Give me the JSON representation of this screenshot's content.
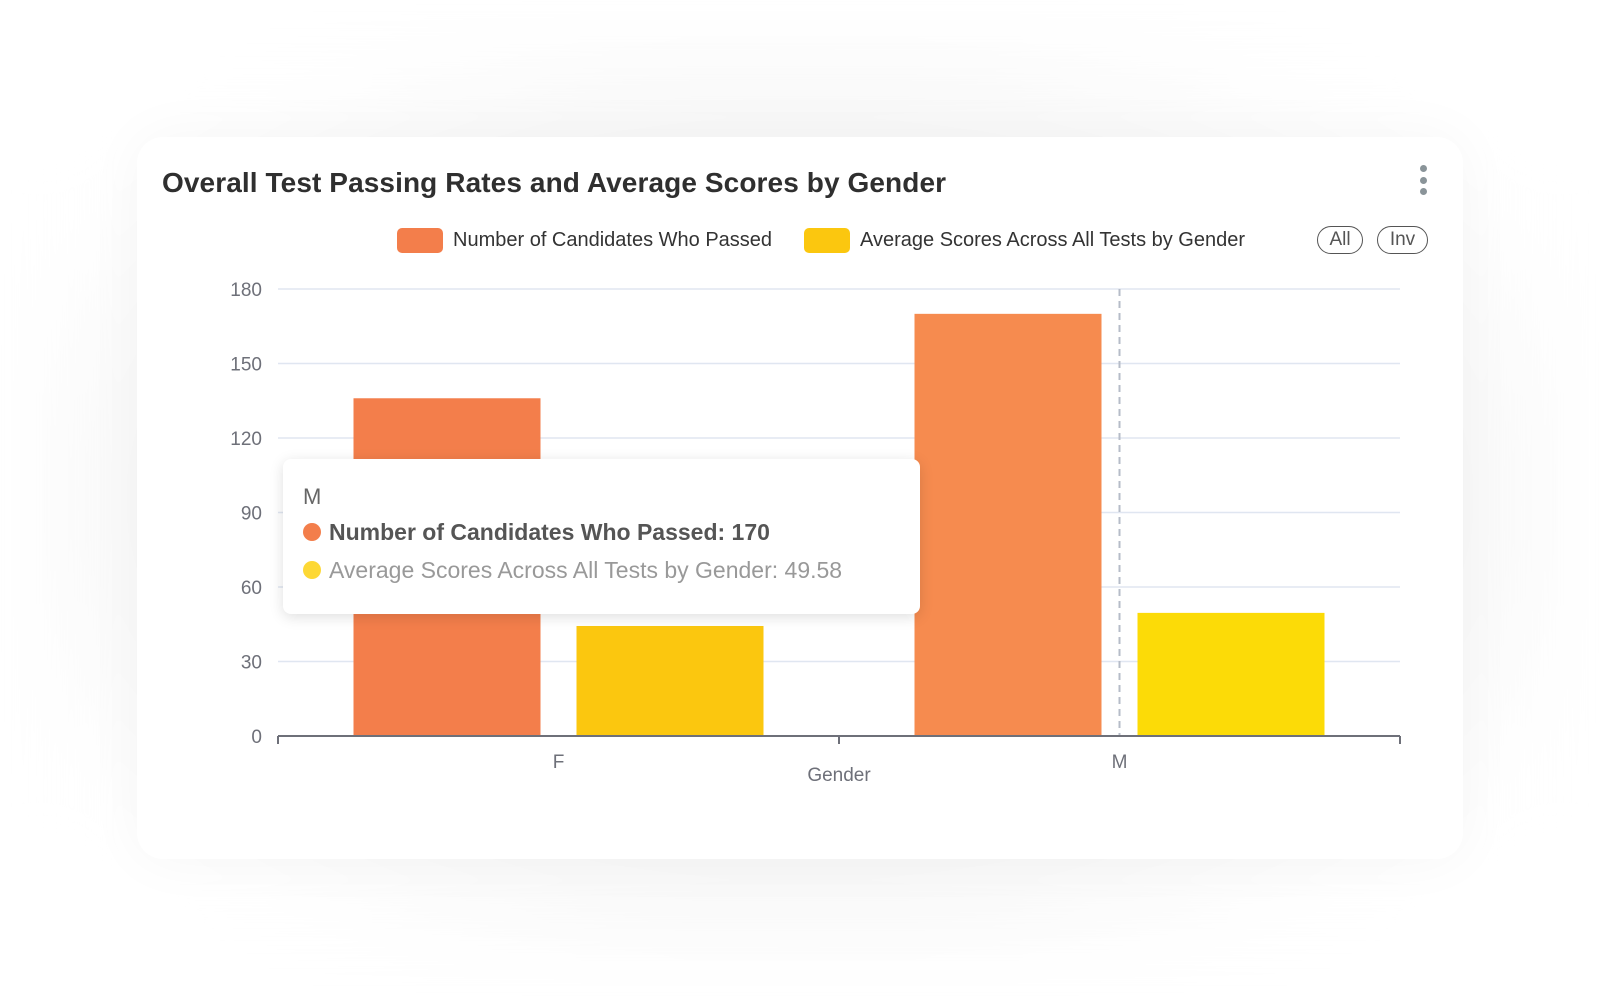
{
  "card": {
    "title": "Overall Test Passing Rates and Average Scores by Gender",
    "menu_icon": "kebab-menu-icon"
  },
  "legend": {
    "items": [
      {
        "label": "Number of Candidates Who Passed",
        "color": "#f37e4b"
      },
      {
        "label": "Average Scores Across All Tests by Gender",
        "color": "#fbc70f"
      }
    ],
    "select_all_label": "All",
    "inverse_label": "Inv"
  },
  "tooltip": {
    "category": "M",
    "rows": [
      {
        "text": "Number of Candidates Who Passed: 170",
        "color": "#f37e4b"
      },
      {
        "text": "Average Scores Across All Tests by Gender: 49.58",
        "color": "#fdd835"
      }
    ]
  },
  "chart_data": {
    "type": "bar",
    "title": "Overall Test Passing Rates and Average Scores by Gender",
    "xlabel": "Gender",
    "ylabel": "",
    "categories": [
      "F",
      "M"
    ],
    "series": [
      {
        "name": "Number of Candidates Who Passed",
        "values": [
          136,
          170
        ],
        "color": "#f37e4b",
        "highlight_color": "#f68b4f"
      },
      {
        "name": "Average Scores Across All Tests by Gender",
        "values": [
          44.3,
          49.58
        ],
        "color": "#fbc70f",
        "highlight_color": "#fcdb07"
      }
    ],
    "ylim": [
      0,
      180
    ],
    "yticks": [
      "0",
      "30",
      "60",
      "90",
      "120",
      "150",
      "180"
    ],
    "grid": true,
    "legend_position": "top-right",
    "highlighted_category": "M"
  }
}
